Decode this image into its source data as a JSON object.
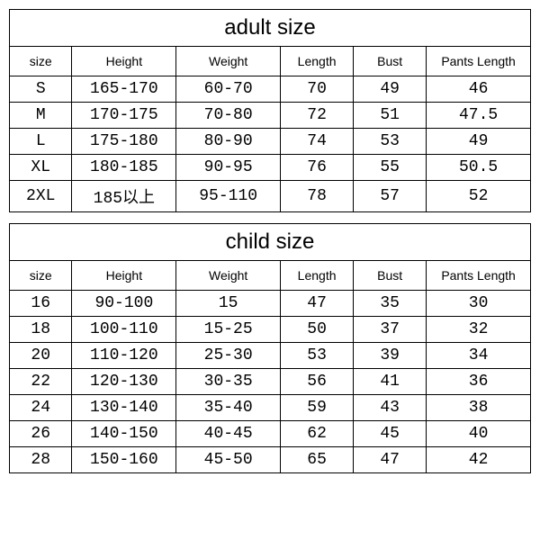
{
  "adult": {
    "title": "adult size",
    "headers": [
      "size",
      "Height",
      "Weight",
      "Length",
      "Bust",
      "Pants Length"
    ],
    "rows": [
      [
        "S",
        "165-170",
        "60-70",
        "70",
        "49",
        "46"
      ],
      [
        "M",
        "170-175",
        "70-80",
        "72",
        "51",
        "47.5"
      ],
      [
        "L",
        "175-180",
        "80-90",
        "74",
        "53",
        "49"
      ],
      [
        "XL",
        "180-185",
        "90-95",
        "76",
        "55",
        "50.5"
      ],
      [
        "2XL",
        "185以上",
        "95-110",
        "78",
        "57",
        "52"
      ]
    ]
  },
  "child": {
    "title": "child size",
    "headers": [
      "size",
      "Height",
      "Weight",
      "Length",
      "Bust",
      "Pants Length"
    ],
    "rows": [
      [
        "16",
        "90-100",
        "15",
        "47",
        "35",
        "30"
      ],
      [
        "18",
        "100-110",
        "15-25",
        "50",
        "37",
        "32"
      ],
      [
        "20",
        "110-120",
        "25-30",
        "53",
        "39",
        "34"
      ],
      [
        "22",
        "120-130",
        "30-35",
        "56",
        "41",
        "36"
      ],
      [
        "24",
        "130-140",
        "35-40",
        "59",
        "43",
        "38"
      ],
      [
        "26",
        "140-150",
        "40-45",
        "62",
        "45",
        "40"
      ],
      [
        "28",
        "150-160",
        "45-50",
        "65",
        "47",
        "42"
      ]
    ]
  },
  "col_classes": [
    "col-size",
    "col-height",
    "col-weight",
    "col-length",
    "col-bust",
    "col-pants"
  ]
}
